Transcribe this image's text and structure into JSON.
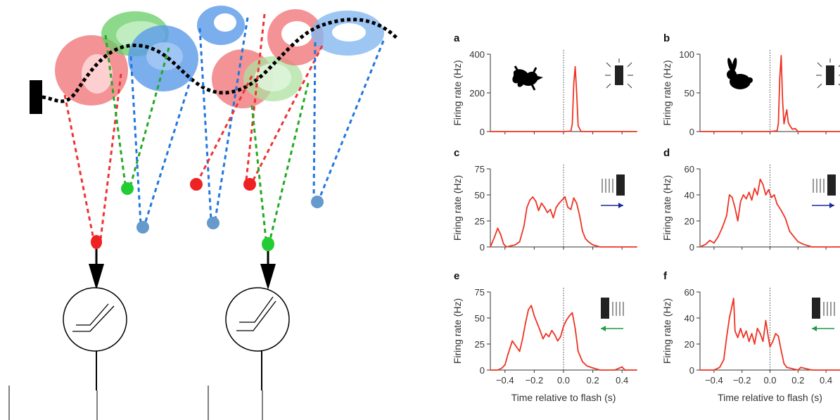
{
  "schematic": {
    "rf_colors": {
      "red": "#f0787a",
      "green": "#66cc66",
      "blue": "#5a9ae8"
    },
    "cell_colors": {
      "red": "#ee2222",
      "green": "#22cc33",
      "blue": "#6699cc"
    },
    "connection_colors": {
      "red": "#ee3333",
      "green": "#22aa22",
      "blue": "#2277dd"
    },
    "trajectory_color": "#000000"
  },
  "chart_data": [
    {
      "panel": "a",
      "type": "line",
      "ylabel": "Firing rate (Hz)",
      "xlabel": "",
      "ylim": [
        0,
        400
      ],
      "yticks": [
        0,
        200,
        400
      ],
      "xlim": [
        -0.5,
        0.5
      ],
      "xticks": [
        -0.4,
        -0.2,
        0.0,
        0.2,
        0.4
      ],
      "show_xtick_labels": false,
      "stimulus_icon": "lizard-silhouette-icon",
      "flash_icon": "flashing-bar-icon",
      "arrow": "none",
      "arrow_color": "",
      "series": [
        {
          "color": "#ee3322",
          "x": [
            -0.5,
            -0.2,
            0.0,
            0.05,
            0.06,
            0.07,
            0.08,
            0.09,
            0.1,
            0.12,
            0.5
          ],
          "y": [
            0,
            0,
            0,
            2,
            40,
            250,
            335,
            200,
            30,
            0,
            0
          ]
        }
      ]
    },
    {
      "panel": "b",
      "type": "line",
      "ylabel": "Firing rate (Hz)",
      "xlabel": "",
      "ylim": [
        0,
        100
      ],
      "yticks": [
        0,
        50,
        100
      ],
      "xlim": [
        -0.5,
        0.5
      ],
      "xticks": [
        -0.4,
        -0.2,
        0.0,
        0.2,
        0.4
      ],
      "show_xtick_labels": false,
      "stimulus_icon": "rabbit-silhouette-icon",
      "flash_icon": "flashing-bar-icon",
      "arrow": "none",
      "arrow_color": "",
      "series": [
        {
          "color": "#ee3322",
          "x": [
            -0.5,
            0.0,
            0.05,
            0.06,
            0.07,
            0.08,
            0.09,
            0.1,
            0.11,
            0.12,
            0.13,
            0.14,
            0.16,
            0.18,
            0.2,
            0.5
          ],
          "y": [
            0,
            0,
            1,
            10,
            70,
            98,
            40,
            10,
            20,
            28,
            12,
            8,
            3,
            4,
            0,
            0
          ]
        }
      ]
    },
    {
      "panel": "c",
      "type": "line",
      "ylabel": "Firing rate (Hz)",
      "xlabel": "",
      "ylim": [
        0,
        75
      ],
      "yticks": [
        0,
        25,
        50,
        75
      ],
      "xlim": [
        -0.5,
        0.5
      ],
      "xticks": [
        -0.4,
        -0.2,
        0.0,
        0.2,
        0.4
      ],
      "show_xtick_labels": false,
      "stimulus_icon": "",
      "flash_icon": "moving-bar-right-icon",
      "arrow": "right",
      "arrow_color": "#1a2a99",
      "series": [
        {
          "color": "#ee3322",
          "x": [
            -0.5,
            -0.47,
            -0.45,
            -0.43,
            -0.41,
            -0.39,
            -0.36,
            -0.33,
            -0.3,
            -0.27,
            -0.25,
            -0.23,
            -0.21,
            -0.19,
            -0.17,
            -0.15,
            -0.13,
            -0.11,
            -0.09,
            -0.07,
            -0.05,
            -0.03,
            -0.01,
            0.01,
            0.03,
            0.05,
            0.07,
            0.09,
            0.11,
            0.13,
            0.15,
            0.17,
            0.2,
            0.25,
            0.5
          ],
          "y": [
            0,
            10,
            18,
            12,
            3,
            0,
            1,
            2,
            5,
            20,
            38,
            45,
            48,
            44,
            35,
            42,
            38,
            33,
            36,
            28,
            38,
            42,
            45,
            48,
            38,
            36,
            47,
            42,
            30,
            15,
            8,
            5,
            2,
            0,
            0
          ]
        }
      ]
    },
    {
      "panel": "d",
      "type": "line",
      "ylabel": "Firing rate (Hz)",
      "xlabel": "",
      "ylim": [
        0,
        60
      ],
      "yticks": [
        0,
        20,
        40,
        60
      ],
      "xlim": [
        -0.5,
        0.5
      ],
      "xticks": [
        -0.4,
        -0.2,
        0.0,
        0.2,
        0.4
      ],
      "show_xtick_labels": false,
      "stimulus_icon": "",
      "flash_icon": "moving-bar-right-icon",
      "arrow": "right",
      "arrow_color": "#1a2a99",
      "series": [
        {
          "color": "#ee3322",
          "x": [
            -0.5,
            -0.46,
            -0.43,
            -0.4,
            -0.37,
            -0.34,
            -0.31,
            -0.29,
            -0.27,
            -0.25,
            -0.23,
            -0.21,
            -0.19,
            -0.17,
            -0.15,
            -0.13,
            -0.11,
            -0.09,
            -0.07,
            -0.05,
            -0.03,
            -0.01,
            0.01,
            0.03,
            0.05,
            0.08,
            0.11,
            0.14,
            0.17,
            0.2,
            0.24,
            0.3,
            0.5
          ],
          "y": [
            0,
            2,
            5,
            3,
            8,
            15,
            24,
            40,
            38,
            30,
            20,
            35,
            40,
            37,
            42,
            36,
            45,
            40,
            52,
            48,
            40,
            44,
            38,
            40,
            33,
            28,
            22,
            12,
            8,
            4,
            2,
            0,
            0
          ]
        }
      ]
    },
    {
      "panel": "e",
      "type": "line",
      "ylabel": "Firing rate (Hz)",
      "xlabel": "Time relative to flash (s)",
      "ylim": [
        0,
        75
      ],
      "yticks": [
        0,
        25,
        50,
        75
      ],
      "xlim": [
        -0.5,
        0.5
      ],
      "xticks": [
        -0.4,
        -0.2,
        0.0,
        0.2,
        0.4
      ],
      "show_xtick_labels": true,
      "stimulus_icon": "",
      "flash_icon": "moving-bar-left-icon",
      "arrow": "left",
      "arrow_color": "#229944",
      "series": [
        {
          "color": "#ee3322",
          "x": [
            -0.5,
            -0.45,
            -0.42,
            -0.4,
            -0.38,
            -0.35,
            -0.33,
            -0.3,
            -0.28,
            -0.26,
            -0.24,
            -0.22,
            -0.2,
            -0.18,
            -0.16,
            -0.14,
            -0.12,
            -0.1,
            -0.08,
            -0.06,
            -0.04,
            -0.02,
            0.0,
            0.02,
            0.04,
            0.06,
            0.08,
            0.1,
            0.13,
            0.16,
            0.2,
            0.25,
            0.35,
            0.4,
            0.42,
            0.5
          ],
          "y": [
            0,
            0,
            2,
            5,
            15,
            28,
            24,
            18,
            30,
            45,
            58,
            62,
            52,
            45,
            38,
            30,
            35,
            32,
            38,
            34,
            28,
            32,
            42,
            48,
            52,
            55,
            40,
            18,
            8,
            4,
            2,
            0,
            0,
            3,
            0,
            0
          ]
        }
      ]
    },
    {
      "panel": "f",
      "type": "line",
      "ylabel": "Firing rate (Hz)",
      "xlabel": "Time relative to flash (s)",
      "ylim": [
        0,
        60
      ],
      "yticks": [
        0,
        20,
        40,
        60
      ],
      "xlim": [
        -0.5,
        0.5
      ],
      "xticks": [
        -0.4,
        -0.2,
        0.0,
        0.2,
        0.4
      ],
      "show_xtick_labels": true,
      "stimulus_icon": "",
      "flash_icon": "moving-bar-left-icon",
      "arrow": "left",
      "arrow_color": "#229944",
      "series": [
        {
          "color": "#ee3322",
          "x": [
            -0.5,
            -0.4,
            -0.36,
            -0.33,
            -0.31,
            -0.29,
            -0.27,
            -0.26,
            -0.25,
            -0.23,
            -0.21,
            -0.19,
            -0.17,
            -0.15,
            -0.13,
            -0.11,
            -0.09,
            -0.07,
            -0.05,
            -0.03,
            -0.01,
            0.0,
            0.02,
            0.04,
            0.06,
            0.08,
            0.1,
            0.12,
            0.2,
            0.22,
            0.3,
            0.5
          ],
          "y": [
            0,
            0,
            2,
            8,
            25,
            40,
            50,
            55,
            30,
            25,
            32,
            25,
            30,
            22,
            28,
            20,
            32,
            28,
            22,
            38,
            24,
            18,
            22,
            28,
            26,
            15,
            5,
            2,
            0,
            2,
            0,
            0
          ]
        }
      ]
    }
  ]
}
